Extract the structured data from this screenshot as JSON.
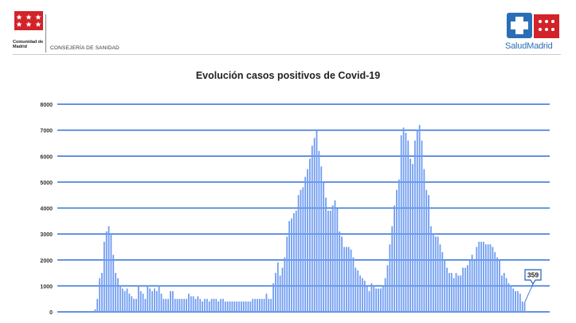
{
  "header": {
    "region_name": "Comunidad de Madrid",
    "department": "CONSEJERÍA DE SANIDAD",
    "brand": "SaludMadrid",
    "brand_color": "#2a6fb5",
    "flag_color": "#d2232a"
  },
  "chart_data": {
    "type": "bar",
    "title": "Evolución casos positivos de Covid-19",
    "xlabel": "",
    "ylabel": "",
    "ylim": [
      0,
      8000
    ],
    "yticks": [
      0,
      1000,
      2000,
      3000,
      4000,
      5000,
      6000,
      7000,
      8000
    ],
    "grid": true,
    "bar_color": "#6f9cf2",
    "gridline_color": "#2e72d6",
    "callout": {
      "label": "359",
      "value": 359
    },
    "series": [
      {
        "name": "",
        "values": [
          0,
          0,
          0,
          0,
          0,
          0,
          0,
          0,
          0,
          0,
          0,
          0,
          0,
          0,
          0,
          0,
          100,
          500,
          1300,
          1500,
          2700,
          3100,
          3300,
          3000,
          2200,
          1500,
          1300,
          1000,
          900,
          800,
          900,
          700,
          600,
          500,
          500,
          1000,
          800,
          700,
          500,
          1000,
          900,
          800,
          900,
          800,
          1000,
          700,
          500,
          500,
          500,
          800,
          800,
          500,
          500,
          500,
          500,
          500,
          500,
          700,
          600,
          600,
          500,
          600,
          500,
          400,
          500,
          500,
          400,
          500,
          500,
          500,
          400,
          500,
          500,
          400,
          400,
          400,
          400,
          400,
          400,
          400,
          400,
          400,
          400,
          400,
          400,
          500,
          500,
          500,
          500,
          500,
          500,
          700,
          500,
          500,
          1100,
          1500,
          1900,
          1400,
          1700,
          2100,
          2900,
          3500,
          3600,
          3800,
          3900,
          4500,
          4700,
          4800,
          5200,
          5500,
          5900,
          6400,
          6700,
          7000,
          6200,
          5600,
          5000,
          4400,
          3900,
          3900,
          4100,
          4300,
          4000,
          3100,
          2900,
          2500,
          2500,
          2500,
          2400,
          2100,
          1700,
          1600,
          1400,
          1300,
          1200,
          1000,
          800,
          1100,
          1000,
          900,
          900,
          900,
          1000,
          1300,
          1800,
          2600,
          3300,
          4100,
          4700,
          5100,
          6800,
          7100,
          6900,
          6600,
          5900,
          5700,
          6600,
          7000,
          7200,
          6600,
          5500,
          4700,
          4500,
          3300,
          3000,
          2900,
          2900,
          2600,
          2300,
          2000,
          1700,
          1500,
          1500,
          1300,
          1500,
          1400,
          1400,
          1700,
          1700,
          1800,
          2000,
          2200,
          2000,
          2500,
          2700,
          2700,
          2700,
          2600,
          2600,
          2600,
          2500,
          2300,
          2100,
          2000,
          1400,
          1500,
          1300,
          1100,
          1000,
          900,
          800,
          800,
          700,
          400,
          359
        ]
      }
    ]
  }
}
